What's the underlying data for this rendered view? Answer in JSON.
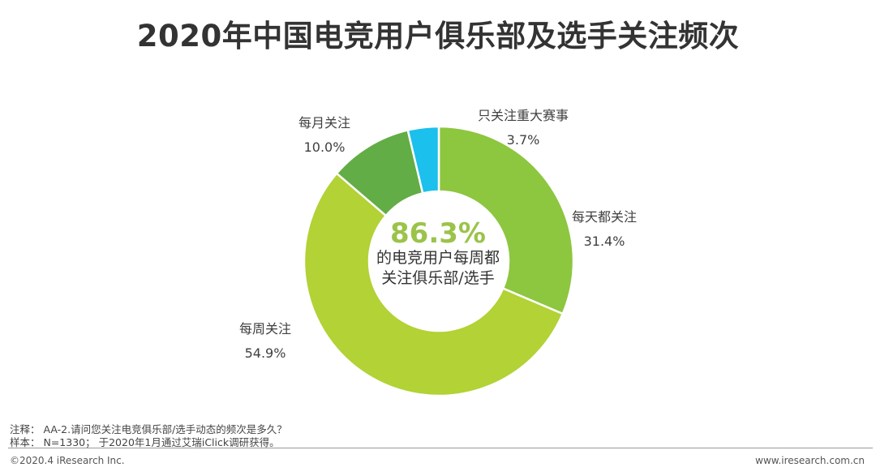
{
  "title": "2020年中国电竞用户俱乐部及选手关注频次",
  "chart_data": {
    "type": "pie",
    "subtype": "donut",
    "categories": [
      "每天都关注",
      "每周关注",
      "每月关注",
      "只关注重大赛事"
    ],
    "values": [
      31.4,
      54.9,
      10.0,
      3.7
    ],
    "value_labels": [
      "31.4%",
      "54.9%",
      "10.0%",
      "3.7%"
    ],
    "colors": [
      "#8dc63f",
      "#b2d235",
      "#62ad45",
      "#1bc0ec"
    ],
    "center": {
      "value": "86.3%",
      "line1": "的电竞用户每周都",
      "line2": "关注俱乐部/选手"
    }
  },
  "notes": {
    "note": "注释：  AA-2.请问您关注电竞俱乐部/选手动态的频次是多久？",
    "sample": "样本：  N=1330；  于2020年1月通过艾瑞iClick调研获得。"
  },
  "footer": {
    "left": "©2020.4 iResearch Inc.",
    "right": "www.iresearch.com.cn"
  }
}
